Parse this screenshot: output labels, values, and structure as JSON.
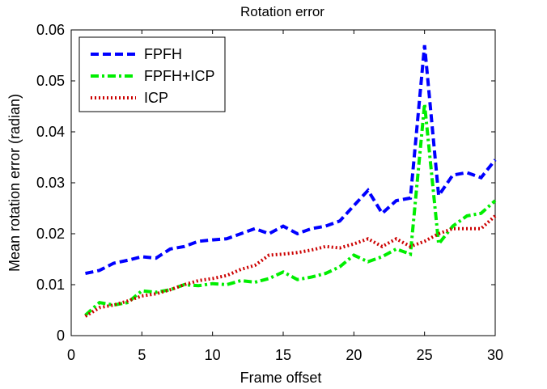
{
  "chart_data": {
    "type": "line",
    "title": "Rotation error",
    "xlabel": "Frame offset",
    "ylabel": "Mean rotation error (radian)",
    "xlim": [
      0,
      30
    ],
    "ylim": [
      0,
      0.06
    ],
    "xticks": [
      0,
      5,
      10,
      15,
      20,
      25,
      30
    ],
    "xtick_labels": [
      "0",
      "5",
      "10",
      "15",
      "20",
      "25",
      "30"
    ],
    "yticks": [
      0,
      0.01,
      0.02,
      0.03,
      0.04,
      0.05,
      0.06
    ],
    "ytick_labels": [
      "0",
      "0.01",
      "0.02",
      "0.03",
      "0.04",
      "0.05",
      "0.06"
    ],
    "grid": false,
    "legend_position": "top-left",
    "x": [
      1,
      2,
      3,
      4,
      5,
      6,
      7,
      8,
      9,
      10,
      11,
      12,
      13,
      14,
      15,
      16,
      17,
      18,
      19,
      20,
      21,
      22,
      23,
      24,
      25,
      26,
      27,
      28,
      29,
      30
    ],
    "series": [
      {
        "name": "FPFH",
        "color": "#0000ff",
        "style": "dashed",
        "values": [
          0.0122,
          0.0128,
          0.0142,
          0.0148,
          0.0155,
          0.0152,
          0.017,
          0.0175,
          0.0185,
          0.0188,
          0.019,
          0.02,
          0.021,
          0.02,
          0.0215,
          0.02,
          0.021,
          0.0215,
          0.0225,
          0.0255,
          0.0285,
          0.024,
          0.0265,
          0.027,
          0.057,
          0.0275,
          0.0315,
          0.032,
          0.031,
          0.0345
        ]
      },
      {
        "name": "FPFH+ICP",
        "color": "#00ee00",
        "style": "dashdot",
        "values": [
          0.004,
          0.0065,
          0.006,
          0.0065,
          0.0088,
          0.0085,
          0.009,
          0.01,
          0.0098,
          0.0102,
          0.01,
          0.0108,
          0.0105,
          0.0112,
          0.0125,
          0.011,
          0.0115,
          0.0122,
          0.0135,
          0.0158,
          0.0145,
          0.0155,
          0.017,
          0.016,
          0.0455,
          0.018,
          0.0215,
          0.0235,
          0.024,
          0.0265
        ]
      },
      {
        "name": "ICP",
        "color": "#cc0000",
        "style": "dotted",
        "values": [
          0.0038,
          0.0055,
          0.006,
          0.0068,
          0.0078,
          0.0082,
          0.009,
          0.01,
          0.0108,
          0.0112,
          0.0118,
          0.013,
          0.0138,
          0.0158,
          0.016,
          0.0163,
          0.0168,
          0.0175,
          0.0172,
          0.018,
          0.019,
          0.0175,
          0.019,
          0.0175,
          0.0185,
          0.02,
          0.021,
          0.021,
          0.021,
          0.0235
        ]
      }
    ]
  }
}
